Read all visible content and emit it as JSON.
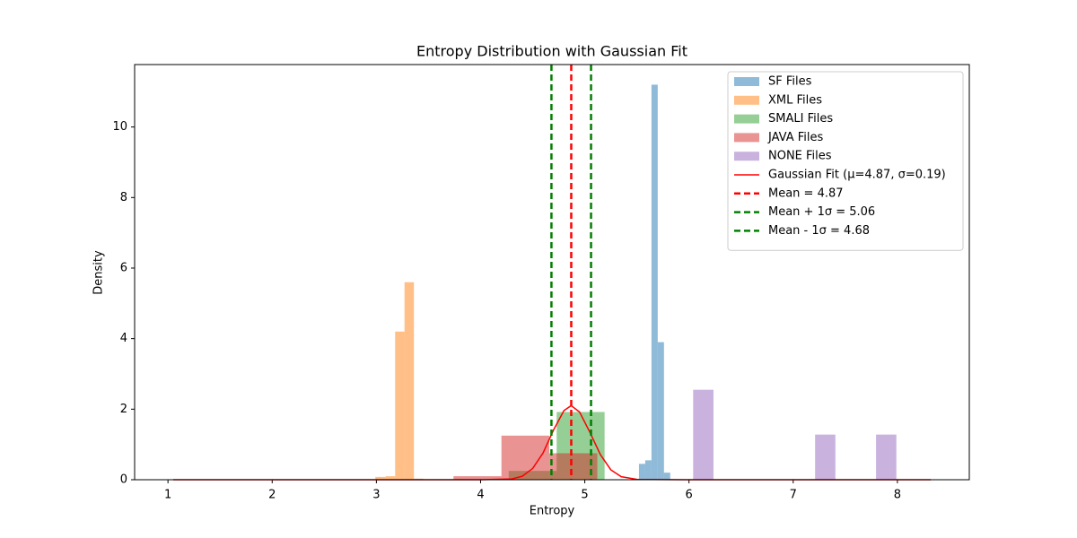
{
  "chart_data": {
    "type": "histogram",
    "title": "Entropy Distribution with Gaussian Fit",
    "xlabel": "Entropy",
    "ylabel": "Density",
    "xlim": [
      0.68,
      8.69
    ],
    "ylim": [
      0,
      11.77
    ],
    "xticks": [
      1,
      2,
      3,
      4,
      5,
      6,
      7,
      8
    ],
    "yticks": [
      0,
      2,
      4,
      6,
      8,
      10
    ],
    "alpha": 0.5,
    "legend": "upper right",
    "series": [
      {
        "name": "SF Files",
        "color": "#1f77b4",
        "bins": [
          5.52,
          5.58,
          5.64,
          5.7,
          5.76,
          5.82
        ],
        "values": [
          0.45,
          0.55,
          11.2,
          3.9,
          0.2
        ]
      },
      {
        "name": "XML Files",
        "color": "#ff7f0e",
        "bins": [
          2.99,
          3.09,
          3.18,
          3.27,
          3.36,
          3.45
        ],
        "values": [
          0.08,
          0.1,
          4.2,
          5.6,
          0.03
        ]
      },
      {
        "name": "SMALI Files",
        "color": "#2ca02c",
        "bins": [
          4.27,
          4.73,
          5.19
        ],
        "values": [
          0.25,
          1.92
        ]
      },
      {
        "name": "JAVA Files",
        "color": "#d62728",
        "bins": [
          3.74,
          4.2,
          4.66,
          5.12
        ],
        "values": [
          0.1,
          1.25,
          0.75
        ]
      },
      {
        "name": "NONE Files",
        "color": "#9467bd",
        "bins": [
          6.04,
          6.235,
          6.43,
          6.625,
          6.82,
          7.015,
          7.21,
          7.405,
          7.6,
          7.795,
          7.99
        ],
        "values": [
          2.55,
          0,
          0,
          0,
          0,
          0,
          1.28,
          0,
          0,
          1.28
        ]
      }
    ],
    "lines": [
      {
        "name": "Gaussian Fit (μ=4.87, σ=0.19)",
        "color": "#ff0000",
        "x": [
          1.05,
          2,
          3,
          4,
          4.3,
          4.4,
          4.5,
          4.6,
          4.7,
          4.8,
          4.87,
          4.95,
          5.05,
          5.15,
          5.25,
          5.35,
          5.5,
          6,
          7,
          8.32
        ],
        "y": [
          0,
          0,
          0,
          0,
          0.023,
          0.098,
          0.32,
          0.76,
          1.41,
          1.96,
          2.1,
          1.92,
          1.34,
          0.71,
          0.28,
          0.086,
          0.009,
          0,
          0,
          0
        ]
      }
    ],
    "vlines": [
      {
        "name": "Mean = 4.87",
        "value": 4.87,
        "color": "#ff0000"
      },
      {
        "name": "Mean + 1σ = 5.06",
        "value": 5.06,
        "color": "#008000"
      },
      {
        "name": "Mean - 1σ = 4.68",
        "value": 4.68,
        "color": "#008000"
      }
    ]
  }
}
